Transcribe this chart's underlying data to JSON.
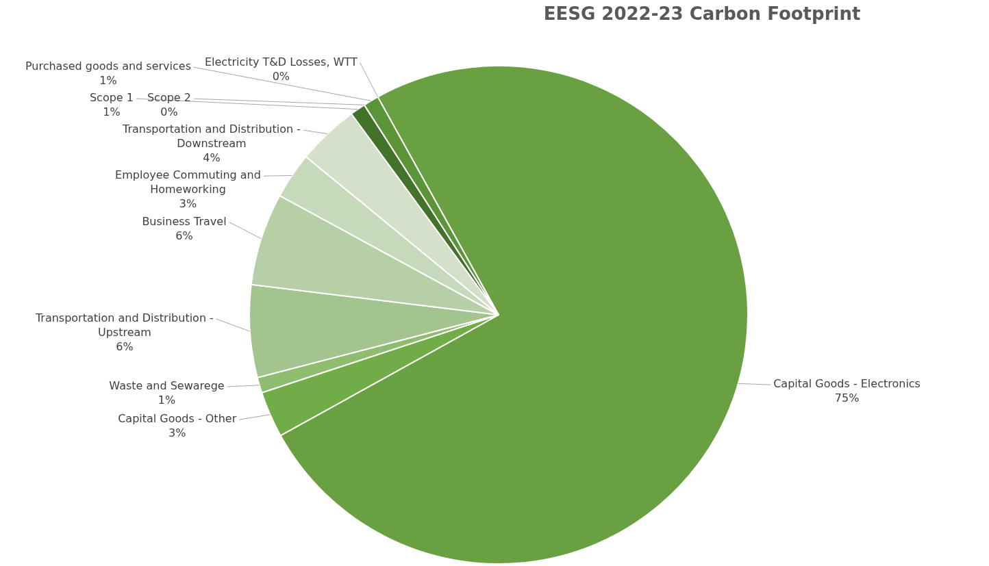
{
  "chart_data": {
    "type": "pie",
    "title": "EESG 2022-23 Carbon Footprint",
    "categories": [
      "Capital Goods - Electronics",
      "Capital Goods - Other",
      "Waste and Sewarege",
      "Transportation and Distribution - Upstream",
      "Business Travel",
      "Employee Commuting and Homeworking",
      "Transportation and Distribution - Downstream",
      "Scope 1",
      "Scope 2",
      "Purchased goods and services",
      "Electricity T&D Losses, WTT"
    ],
    "values": [
      75,
      3,
      1,
      6,
      6,
      3,
      4,
      1,
      0,
      1,
      0
    ],
    "value_labels": [
      "75%",
      "3%",
      "1%",
      "6%",
      "6%",
      "3%",
      "4%",
      "1%",
      "0%",
      "1%",
      "0%"
    ],
    "colors": [
      "#69a142",
      "#70ad47",
      "#8fbc6e",
      "#a3c48f",
      "#b6cfa6",
      "#c6d9ba",
      "#d5e0cb",
      "#43732a",
      "#548235",
      "#5b9538",
      "#4e7f31"
    ]
  }
}
